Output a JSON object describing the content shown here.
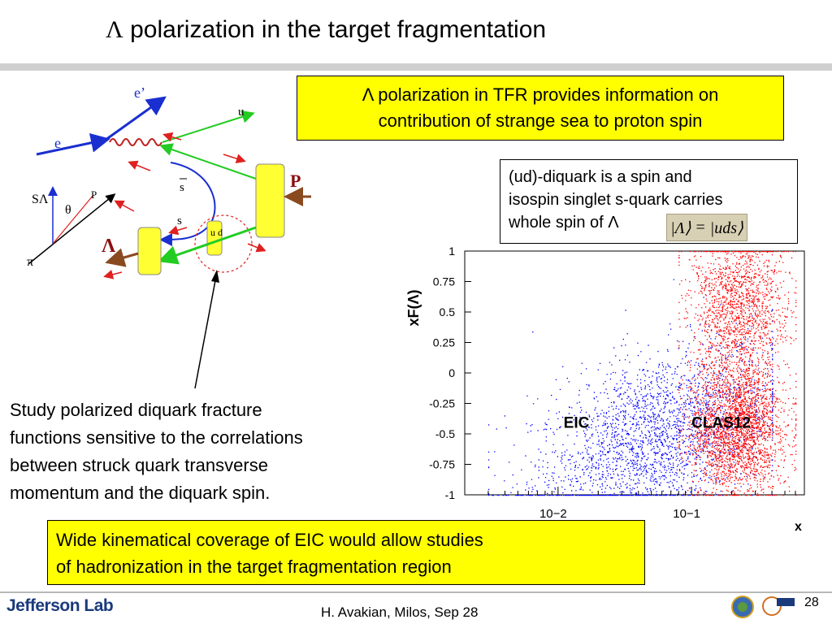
{
  "slide": {
    "title_symbol": "Λ",
    "title_text": " polarization in the target fragmentation",
    "page_number": "28",
    "footer": "H. Avakian, Milos,  Sep 28",
    "logo_text": "Jefferson Lab",
    "colors": {
      "highlight_box": "#ffff00",
      "title_rule": "#d0d0d0"
    }
  },
  "box_top": {
    "line1": "Λ polarization in TFR provides information on",
    "line2": "contribution of strange sea to proton spin"
  },
  "box_spin": {
    "line1": "(ud)-diquark is a spin and",
    "line2": "isospin singlet s-quark carries",
    "line3": "whole spin of Λ",
    "formula_left": "|Λ⟩",
    "formula_eq": "=",
    "formula_right": "|uds⟩"
  },
  "study": {
    "line1": "Study polarized diquark fracture",
    "line2": "functions sensitive to the correlations",
    "line3": "between struck quark transverse",
    "line4": "momentum and the diquark spin."
  },
  "box_bottom": {
    "line1": "Wide kinematical coverage of EIC would  allow studies",
    "line2": "of hadronization in the target fragmentation region"
  },
  "diagram": {
    "label_e_prime": "e’",
    "label_e": "e",
    "label_u": "u",
    "label_sbar": "s",
    "label_s": "s",
    "label_P": "P",
    "label_Lambda": "Λ",
    "label_ud": "u d",
    "label_SLambda": "SΛ",
    "label_theta": "θ",
    "label_p": "P",
    "label_pi": "π"
  },
  "chart_data": {
    "type": "scatter",
    "title": "",
    "xlabel": "x",
    "ylabel": "xF(Λ)",
    "x_scale": "log",
    "xlim": [
      0.002,
      0.7
    ],
    "ylim": [
      -1,
      1
    ],
    "y_ticks": [
      "1",
      "0.75",
      "0.5",
      "0.25",
      "0",
      "-0.25",
      "-0.5",
      "-0.75",
      "-1"
    ],
    "x_ticks": [
      "10−2",
      "10−1"
    ],
    "series": [
      {
        "name": "EIC",
        "color": "#0000ff",
        "x_range": [
          0.003,
          0.4
        ],
        "y_range": [
          -1,
          0.9
        ],
        "density_center_x": 0.05,
        "density_center_y": -0.55
      },
      {
        "name": "CLAS12",
        "color": "#ff0000",
        "x_range": [
          0.08,
          0.6
        ],
        "y_range": [
          -1,
          1
        ],
        "density_center_x": 0.22,
        "density_center_y": -0.45
      }
    ],
    "annotations": [
      "EIC",
      "CLAS12"
    ]
  }
}
